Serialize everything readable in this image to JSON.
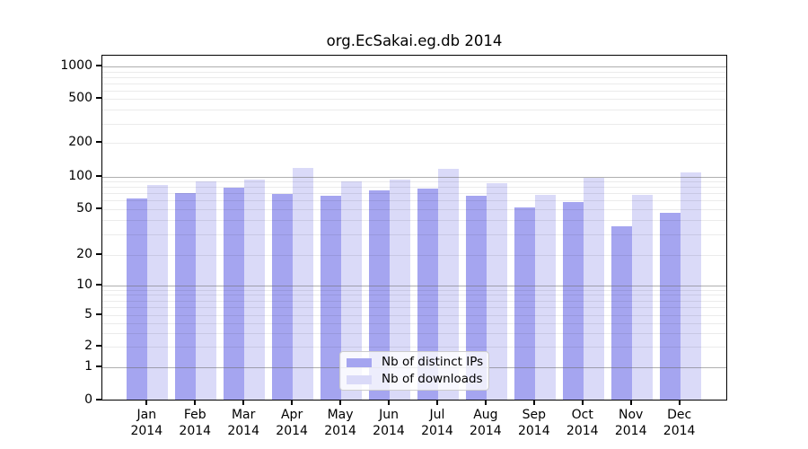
{
  "title": "org.EcSakai.eg.db 2014",
  "chart_data": {
    "type": "bar",
    "title": "org.EcSakai.eg.db 2014",
    "categories": [
      "Jan 2014",
      "Feb 2014",
      "Mar 2014",
      "Apr 2014",
      "May 2014",
      "Jun 2014",
      "Jul 2014",
      "Aug 2014",
      "Sep 2014",
      "Oct 2014",
      "Nov 2014",
      "Dec 2014"
    ],
    "series": [
      {
        "name": "Nb of distinct IPs",
        "color": "#a5a5f0",
        "values": [
          60,
          68,
          76,
          66,
          64,
          72,
          75,
          64,
          50,
          56,
          34,
          45
        ]
      },
      {
        "name": "Nb of downloads",
        "color": "#dadaf8",
        "values": [
          80,
          87,
          90,
          116,
          87,
          90,
          113,
          83,
          65,
          94,
          65,
          106
        ]
      }
    ],
    "xlabel": "",
    "ylabel": "",
    "yscale": "symlog",
    "ylim": [
      0,
      1200
    ],
    "yticks": [
      1000,
      500,
      200,
      100,
      50,
      20,
      10,
      5,
      2,
      1,
      0
    ],
    "minor_gridlines": [
      900,
      800,
      700,
      600,
      400,
      300,
      90,
      80,
      70,
      60,
      40,
      30,
      9,
      8,
      7,
      6,
      4,
      3
    ],
    "major_gridlines": [
      1000,
      100,
      10,
      1
    ],
    "grid": "both",
    "legend_position": "lower center"
  },
  "legend": {
    "items": [
      {
        "label": "Nb of distinct IPs",
        "color": "#a5a5f0"
      },
      {
        "label": "Nb of downloads",
        "color": "#dadaf8"
      }
    ]
  }
}
